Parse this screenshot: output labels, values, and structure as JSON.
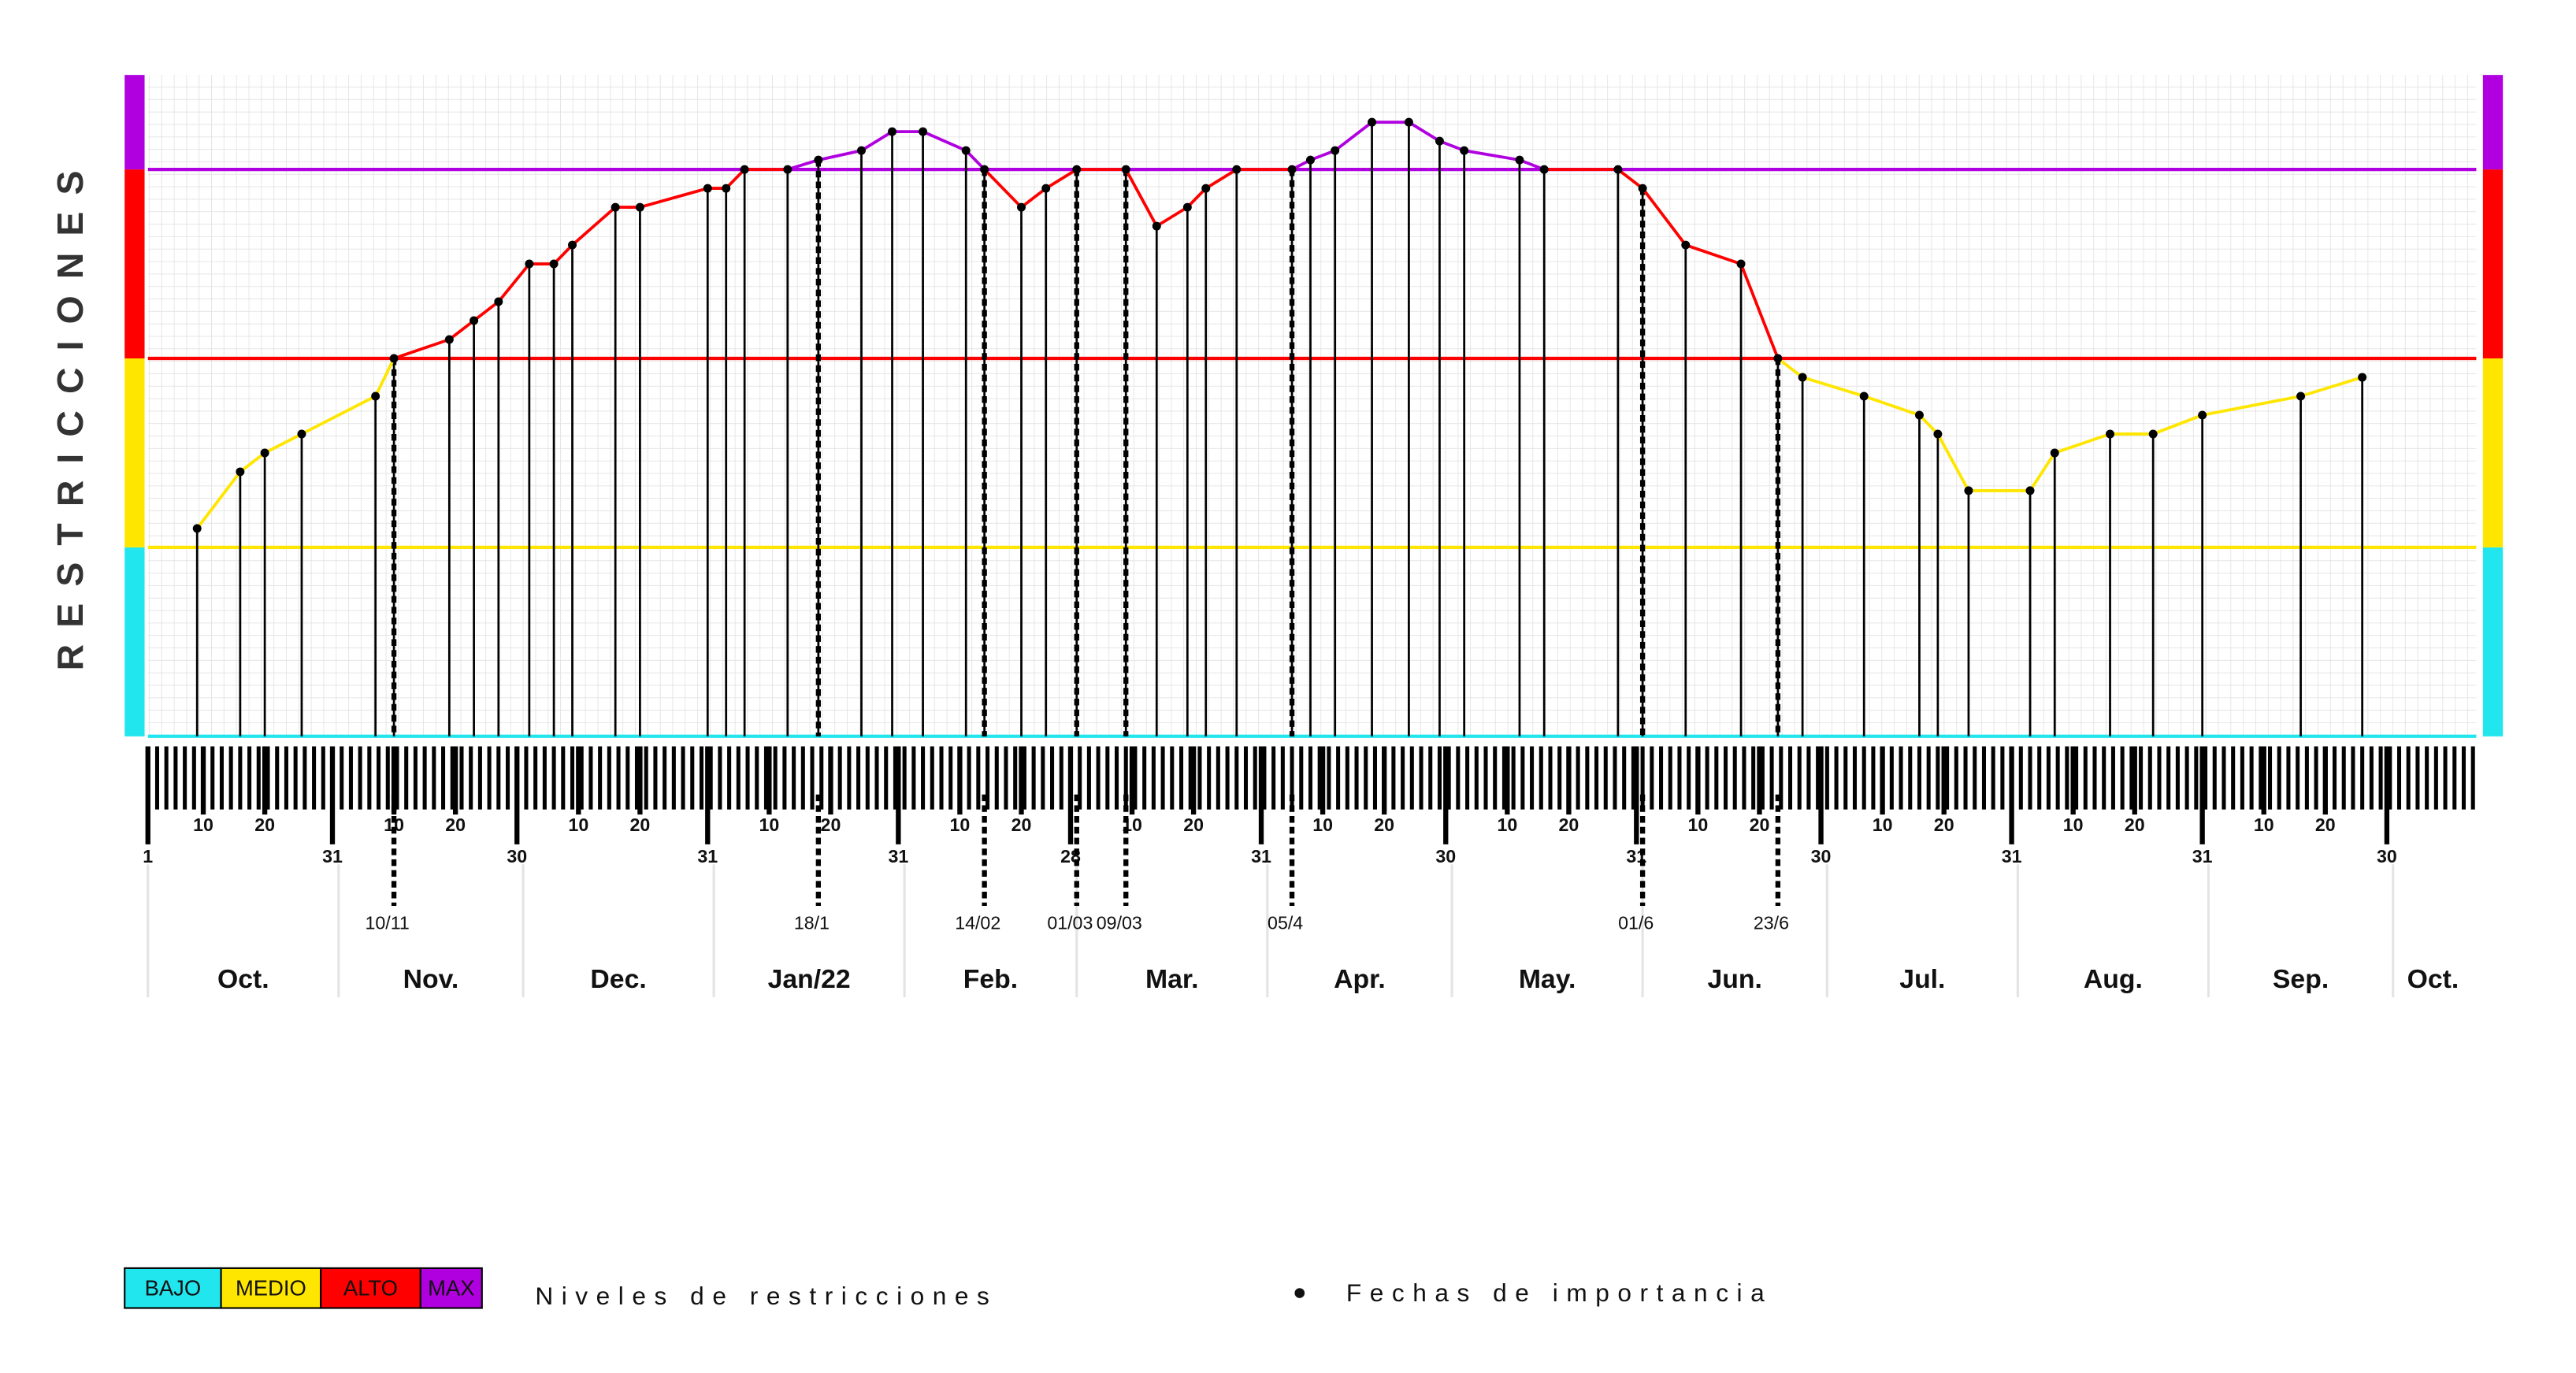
{
  "chart_data": {
    "type": "line",
    "y_axis_label": "RESTRICCIONES",
    "xlim": [
      0,
      378
    ],
    "ylim": [
      0,
      3.5
    ],
    "grid": true,
    "point_color": "#000000",
    "bands": [
      {
        "name": "BAJO",
        "color": "#22e6ee",
        "from": 0,
        "to": 1
      },
      {
        "name": "MEDIO",
        "color": "#ffe600",
        "from": 1,
        "to": 2
      },
      {
        "name": "ALTO",
        "color": "#ff0000",
        "from": 2,
        "to": 3
      },
      {
        "name": "MAX",
        "color": "#b000e0",
        "from": 3,
        "to": 3.5
      }
    ],
    "xticks": [
      {
        "value": 0,
        "label": "1"
      },
      {
        "value": 9,
        "label": "10"
      },
      {
        "value": 19,
        "label": "20"
      },
      {
        "value": 30,
        "label": "31"
      },
      {
        "value": 40,
        "label": "10"
      },
      {
        "value": 50,
        "label": "20"
      },
      {
        "value": 60,
        "label": "30"
      },
      {
        "value": 70,
        "label": "10"
      },
      {
        "value": 80,
        "label": "20"
      },
      {
        "value": 91,
        "label": "31"
      },
      {
        "value": 101,
        "label": "10"
      },
      {
        "value": 111,
        "label": "20"
      },
      {
        "value": 122,
        "label": "31"
      },
      {
        "value": 132,
        "label": "10"
      },
      {
        "value": 142,
        "label": "20"
      },
      {
        "value": 150,
        "label": "28"
      },
      {
        "value": 160,
        "label": "10"
      },
      {
        "value": 170,
        "label": "20"
      },
      {
        "value": 181,
        "label": "31"
      },
      {
        "value": 191,
        "label": "10"
      },
      {
        "value": 201,
        "label": "20"
      },
      {
        "value": 211,
        "label": "30"
      },
      {
        "value": 221,
        "label": "10"
      },
      {
        "value": 231,
        "label": "20"
      },
      {
        "value": 242,
        "label": "31"
      },
      {
        "value": 252,
        "label": "10"
      },
      {
        "value": 262,
        "label": "20"
      },
      {
        "value": 272,
        "label": "30"
      },
      {
        "value": 282,
        "label": "10"
      },
      {
        "value": 292,
        "label": "20"
      },
      {
        "value": 303,
        "label": "31"
      },
      {
        "value": 313,
        "label": "10"
      },
      {
        "value": 323,
        "label": "20"
      },
      {
        "value": 334,
        "label": "31"
      },
      {
        "value": 344,
        "label": "10"
      },
      {
        "value": 354,
        "label": "20"
      },
      {
        "value": 364,
        "label": "30"
      }
    ],
    "months": [
      {
        "value": 0,
        "label": "Oct."
      },
      {
        "value": 31,
        "label": "Nov."
      },
      {
        "value": 61,
        "label": "Dec."
      },
      {
        "value": 92,
        "label": "Jan/22"
      },
      {
        "value": 123,
        "label": "Feb."
      },
      {
        "value": 151,
        "label": "Mar."
      },
      {
        "value": 182,
        "label": "Apr."
      },
      {
        "value": 212,
        "label": "May."
      },
      {
        "value": 243,
        "label": "Jun."
      },
      {
        "value": 273,
        "label": "Jul."
      },
      {
        "value": 304,
        "label": "Aug."
      },
      {
        "value": 335,
        "label": "Sep."
      },
      {
        "value": 365,
        "label": "Oct."
      }
    ],
    "key_dates": [
      {
        "value": 40,
        "label": "10/11"
      },
      {
        "value": 109,
        "label": "18/1"
      },
      {
        "value": 136,
        "label": "14/02"
      },
      {
        "value": 151,
        "label": "01/03"
      },
      {
        "value": 159,
        "label": "09/03"
      },
      {
        "value": 186,
        "label": "05/4"
      },
      {
        "value": 243,
        "label": "01/6"
      },
      {
        "value": 265,
        "label": "23/6"
      }
    ],
    "x": [
      8,
      15,
      19,
      25,
      37,
      40,
      49,
      53,
      57,
      62,
      66,
      69,
      76,
      80,
      91,
      94,
      97,
      104,
      109,
      116,
      121,
      126,
      133,
      136,
      142,
      146,
      151,
      159,
      164,
      169,
      172,
      177,
      186,
      189,
      193,
      199,
      205,
      210,
      214,
      223,
      227,
      239,
      243,
      250,
      259,
      265,
      269,
      279,
      288,
      291,
      296,
      306,
      310,
      319,
      326,
      334,
      350,
      360
    ],
    "values": [
      1.1,
      1.4,
      1.5,
      1.6,
      1.8,
      2.0,
      2.1,
      2.2,
      2.3,
      2.5,
      2.5,
      2.6,
      2.8,
      2.8,
      2.9,
      2.9,
      3.0,
      3.0,
      3.05,
      3.1,
      3.2,
      3.2,
      3.1,
      3.0,
      2.8,
      2.9,
      3.0,
      3.0,
      2.7,
      2.8,
      2.9,
      3.0,
      3.0,
      3.05,
      3.1,
      3.25,
      3.25,
      3.15,
      3.1,
      3.05,
      3.0,
      3.0,
      2.9,
      2.6,
      2.5,
      2.0,
      1.9,
      1.8,
      1.7,
      1.6,
      1.3,
      1.3,
      1.5,
      1.6,
      1.6,
      1.7,
      1.8,
      1.9
    ],
    "legend": {
      "title": "Niveles de restricciones",
      "dates": "Fechas de importancia"
    }
  }
}
